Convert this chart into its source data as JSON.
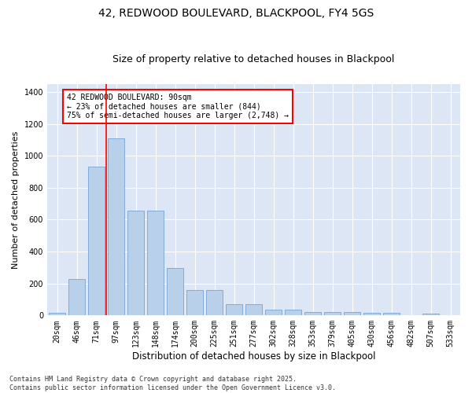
{
  "title": "42, REDWOOD BOULEVARD, BLACKPOOL, FY4 5GS",
  "subtitle": "Size of property relative to detached houses in Blackpool",
  "xlabel": "Distribution of detached houses by size in Blackpool",
  "ylabel": "Number of detached properties",
  "categories": [
    "20sqm",
    "46sqm",
    "71sqm",
    "97sqm",
    "123sqm",
    "148sqm",
    "174sqm",
    "200sqm",
    "225sqm",
    "251sqm",
    "277sqm",
    "302sqm",
    "328sqm",
    "353sqm",
    "379sqm",
    "405sqm",
    "430sqm",
    "456sqm",
    "482sqm",
    "507sqm",
    "533sqm"
  ],
  "values": [
    15,
    230,
    930,
    1110,
    655,
    655,
    295,
    160,
    160,
    70,
    70,
    38,
    38,
    22,
    22,
    22,
    17,
    17,
    0,
    10,
    0
  ],
  "bar_color": "#b8d0ea",
  "bar_edgecolor": "#6699cc",
  "background_color": "#dce6f5",
  "grid_color": "#ffffff",
  "vline_color": "red",
  "vline_index": 2.5,
  "annotation_text": "42 REDWOOD BOULEVARD: 90sqm\n← 23% of detached houses are smaller (844)\n75% of semi-detached houses are larger (2,748) →",
  "annotation_box_color": "red",
  "footer": "Contains HM Land Registry data © Crown copyright and database right 2025.\nContains public sector information licensed under the Open Government Licence v3.0.",
  "ylim": [
    0,
    1450
  ],
  "title_fontsize": 10,
  "subtitle_fontsize": 9,
  "tick_fontsize": 7,
  "ylabel_fontsize": 8,
  "xlabel_fontsize": 8.5,
  "annotation_fontsize": 7,
  "footer_fontsize": 6
}
